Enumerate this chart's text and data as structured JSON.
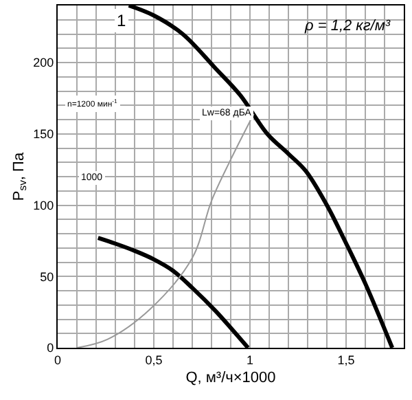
{
  "chart_data": {
    "type": "line",
    "xlabel": "Q, м³/ч×1000",
    "ylabel": "P$_{sv}$, Па",
    "xlim": [
      0,
      1.8
    ],
    "xticks": [
      0,
      {
        "value": 0.1,
        "label": null
      },
      {
        "value": 0.2,
        "label": null
      },
      {
        "value": 0.3,
        "label": null
      },
      {
        "value": 0.4,
        "label": null
      },
      {
        "value": 0.5,
        "label": "0,5"
      },
      {
        "value": 0.6,
        "label": null
      },
      {
        "value": 0.7,
        "label": null
      },
      {
        "value": 0.8,
        "label": null
      },
      {
        "value": 0.9,
        "label": null
      },
      1,
      {
        "value": 1.1,
        "label": null
      },
      {
        "value": 1.2,
        "label": null
      },
      {
        "value": 1.3,
        "label": null
      },
      {
        "value": 1.4,
        "label": null
      },
      {
        "value": 1.5,
        "label": "1,5"
      },
      {
        "value": 1.6,
        "label": null
      },
      {
        "value": 1.7,
        "label": null
      }
    ],
    "ylim": [
      0,
      240
    ],
    "yticks": [
      0,
      {
        "value": 10,
        "label": null
      },
      {
        "value": 20,
        "label": null
      },
      {
        "value": 30,
        "label": null
      },
      {
        "value": 40,
        "label": null
      },
      50,
      {
        "value": 60,
        "label": null
      },
      {
        "value": 70,
        "label": null
      },
      {
        "value": 80,
        "label": null
      },
      {
        "value": 90,
        "label": null
      },
      100,
      {
        "value": 110,
        "label": null
      },
      {
        "value": 120,
        "label": null
      },
      {
        "value": 130,
        "label": null
      },
      {
        "value": 140,
        "label": null
      },
      150,
      {
        "value": 160,
        "label": null
      },
      {
        "value": 170,
        "label": null
      },
      {
        "value": 180,
        "label": null
      },
      {
        "value": 190,
        "label": null
      },
      200,
      {
        "value": 210,
        "label": null
      },
      {
        "value": 220,
        "label": null
      },
      {
        "value": 230,
        "label": null
      }
    ],
    "grid": true,
    "marker": "none",
    "series": [
      {
        "color": "#000000",
        "x": [
          0.37,
          0.5,
          0.65,
          0.82,
          0.95,
          1.09,
          1.2,
          1.29,
          1.4,
          1.49,
          1.6,
          1.74
        ],
        "values": [
          240,
          233,
          220,
          196,
          177,
          150,
          136,
          124,
          100,
          76,
          45,
          0
        ]
      },
      {
        "color": "#000000",
        "x": [
          0.21,
          0.3,
          0.4,
          0.5,
          0.6,
          0.7,
          0.82,
          0.9,
          0.99
        ],
        "values": [
          77,
          73,
          68,
          62,
          54,
          42,
          26,
          14,
          0
        ]
      },
      {
        "color": "#999999",
        "x": [
          0.1,
          0.26,
          0.48,
          0.7,
          0.8,
          0.9,
          1.02
        ],
        "values": [
          0,
          6,
          27,
          63,
          103,
          132,
          164
        ]
      }
    ],
    "annotations": [
      "ρ = 1,2 кг/м³",
      {
        "text": "1",
        "x": 0.37,
        "y": 240
      },
      "n=1200 мин$^{-1}$",
      "1000",
      {
        "text": "Lw=68 дБА",
        "x": 1.02,
        "y": 164
      }
    ]
  }
}
